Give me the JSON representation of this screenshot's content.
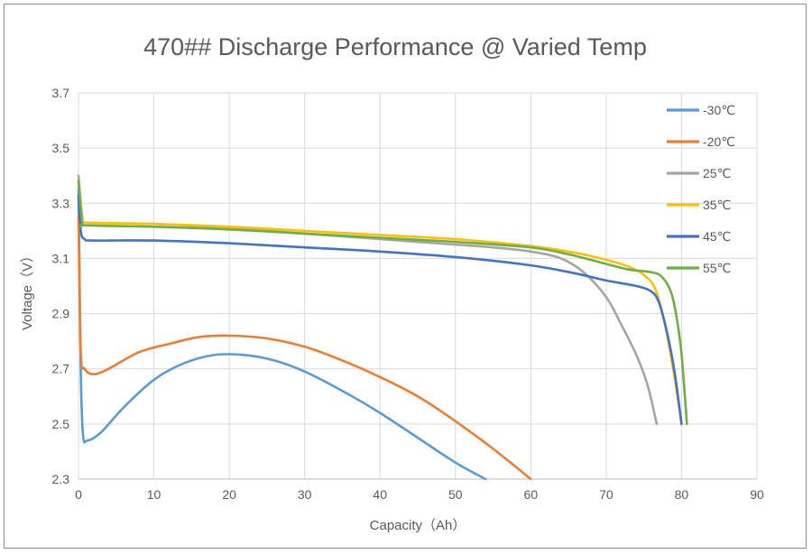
{
  "chart_data": {
    "type": "line",
    "title": "470## Discharge Performance @ Varied Temp",
    "xlabel": "Capacity（Ah）",
    "ylabel": "Voltage（V）",
    "xlim": [
      0,
      90
    ],
    "ylim": [
      2.3,
      3.7
    ],
    "xticks": [
      "0",
      "10",
      "20",
      "30",
      "40",
      "50",
      "60",
      "70",
      "80",
      "90"
    ],
    "yticks": [
      "2.3",
      "2.5",
      "2.7",
      "2.9",
      "3.1",
      "3.3",
      "3.5",
      "3.7"
    ],
    "grid": true,
    "legend_position": "right",
    "series": [
      {
        "name": "-30℃",
        "color": "#5b9bd5",
        "points": [
          [
            0,
            3.35
          ],
          [
            0.3,
            2.7
          ],
          [
            0.6,
            2.46
          ],
          [
            1.2,
            2.44
          ],
          [
            3,
            2.47
          ],
          [
            6,
            2.56
          ],
          [
            10,
            2.66
          ],
          [
            14,
            2.72
          ],
          [
            18,
            2.75
          ],
          [
            22,
            2.75
          ],
          [
            26,
            2.73
          ],
          [
            30,
            2.69
          ],
          [
            35,
            2.62
          ],
          [
            40,
            2.54
          ],
          [
            45,
            2.45
          ],
          [
            50,
            2.36
          ],
          [
            54,
            2.3
          ]
        ]
      },
      {
        "name": "-20℃",
        "color": "#ed7d31",
        "points": [
          [
            0,
            3.25
          ],
          [
            0.3,
            2.76
          ],
          [
            0.8,
            2.7
          ],
          [
            2,
            2.68
          ],
          [
            4,
            2.7
          ],
          [
            8,
            2.76
          ],
          [
            12,
            2.79
          ],
          [
            16,
            2.815
          ],
          [
            20,
            2.82
          ],
          [
            25,
            2.81
          ],
          [
            30,
            2.78
          ],
          [
            35,
            2.73
          ],
          [
            40,
            2.67
          ],
          [
            45,
            2.6
          ],
          [
            50,
            2.51
          ],
          [
            55,
            2.41
          ],
          [
            60,
            2.3
          ]
        ]
      },
      {
        "name": "25℃",
        "color": "#a5a5a5",
        "points": [
          [
            0,
            3.4
          ],
          [
            0.5,
            3.25
          ],
          [
            1,
            3.23
          ],
          [
            10,
            3.225
          ],
          [
            20,
            3.21
          ],
          [
            30,
            3.19
          ],
          [
            40,
            3.17
          ],
          [
            50,
            3.15
          ],
          [
            55,
            3.14
          ],
          [
            60,
            3.125
          ],
          [
            64,
            3.1
          ],
          [
            67,
            3.05
          ],
          [
            70,
            2.96
          ],
          [
            72,
            2.86
          ],
          [
            74,
            2.75
          ],
          [
            75.5,
            2.64
          ],
          [
            76.7,
            2.5
          ]
        ]
      },
      {
        "name": "35℃",
        "color": "#ffc000",
        "points": [
          [
            0,
            3.38
          ],
          [
            0.5,
            3.24
          ],
          [
            1,
            3.23
          ],
          [
            10,
            3.225
          ],
          [
            20,
            3.215
          ],
          [
            30,
            3.2
          ],
          [
            40,
            3.185
          ],
          [
            50,
            3.17
          ],
          [
            60,
            3.145
          ],
          [
            66,
            3.12
          ],
          [
            70,
            3.095
          ],
          [
            73,
            3.07
          ],
          [
            75,
            3.04
          ],
          [
            76.5,
            2.99
          ],
          [
            77.8,
            2.86
          ],
          [
            79,
            2.68
          ],
          [
            80,
            2.5
          ]
        ]
      },
      {
        "name": "45℃",
        "color": "#4472c4",
        "points": [
          [
            0,
            3.33
          ],
          [
            0.3,
            3.2
          ],
          [
            0.8,
            3.17
          ],
          [
            2,
            3.165
          ],
          [
            10,
            3.165
          ],
          [
            20,
            3.155
          ],
          [
            30,
            3.14
          ],
          [
            40,
            3.125
          ],
          [
            50,
            3.105
          ],
          [
            60,
            3.075
          ],
          [
            66,
            3.045
          ],
          [
            70,
            3.02
          ],
          [
            74,
            3.0
          ],
          [
            76,
            2.98
          ],
          [
            77,
            2.94
          ],
          [
            78,
            2.84
          ],
          [
            79,
            2.7
          ],
          [
            80,
            2.5
          ]
        ]
      },
      {
        "name": "55℃",
        "color": "#70ad47",
        "points": [
          [
            0,
            3.38
          ],
          [
            0.5,
            3.23
          ],
          [
            1,
            3.22
          ],
          [
            10,
            3.215
          ],
          [
            20,
            3.205
          ],
          [
            30,
            3.19
          ],
          [
            40,
            3.175
          ],
          [
            50,
            3.16
          ],
          [
            60,
            3.14
          ],
          [
            65,
            3.115
          ],
          [
            70,
            3.08
          ],
          [
            73,
            3.06
          ],
          [
            76,
            3.05
          ],
          [
            77.5,
            3.03
          ],
          [
            78.8,
            2.96
          ],
          [
            79.8,
            2.8
          ],
          [
            80.3,
            2.65
          ],
          [
            80.7,
            2.5
          ]
        ]
      }
    ]
  }
}
